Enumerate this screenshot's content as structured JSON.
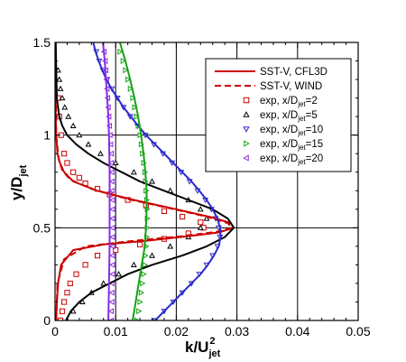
{
  "chart_data": {
    "type": "line",
    "xlabel": {
      "main": "k/U",
      "sub": "jet",
      "sup": "2"
    },
    "ylabel": {
      "main": "y/D",
      "sub": "jet"
    },
    "xlim": [
      0,
      0.05
    ],
    "ylim": [
      0,
      1.5
    ],
    "x_ticks": [
      "0",
      "0.01",
      "0.02",
      "0.03",
      "0.04",
      "0.05"
    ],
    "y_ticks": [
      "0",
      "0.5",
      "1",
      "1.5"
    ],
    "grid": true,
    "legend_position": "top-right",
    "legend": [
      {
        "text": "SST-V, CFL3D",
        "style": "solid-line",
        "color": "#cc0000"
      },
      {
        "text": "SST-V, WIND",
        "style": "dashed-line",
        "color": "#cc0000"
      },
      {
        "text": "exp, x/D",
        "sub": "jet",
        "suffix": "=2",
        "style": "marker",
        "marker": "square",
        "color": "#cc0000"
      },
      {
        "text": "exp, x/D",
        "sub": "jet",
        "suffix": "=5",
        "style": "marker",
        "marker": "triangle-up",
        "color": "#000000"
      },
      {
        "text": "exp, x/D",
        "sub": "jet",
        "suffix": "=10",
        "style": "marker",
        "marker": "triangle-down",
        "color": "#2a2acc"
      },
      {
        "text": "exp, x/D",
        "sub": "jet",
        "suffix": "=15",
        "style": "marker",
        "marker": "triangle-right",
        "color": "#16a316"
      },
      {
        "text": "exp, x/D",
        "sub": "jet",
        "suffix": "=20",
        "style": "marker",
        "marker": "triangle-left",
        "color": "#8a2be2"
      }
    ],
    "series": [
      {
        "name": "SST-V, CFL3D, x/Djet=2",
        "kind": "line",
        "color": "#cc0000",
        "points": [
          [
            0.0002,
            0
          ],
          [
            0.0003,
            0.1
          ],
          [
            0.0005,
            0.2
          ],
          [
            0.001,
            0.3
          ],
          [
            0.003,
            0.38
          ],
          [
            0.008,
            0.41
          ],
          [
            0.015,
            0.43
          ],
          [
            0.022,
            0.455
          ],
          [
            0.027,
            0.475
          ],
          [
            0.0295,
            0.5
          ],
          [
            0.029,
            0.525
          ],
          [
            0.026,
            0.555
          ],
          [
            0.02,
            0.6
          ],
          [
            0.013,
            0.65
          ],
          [
            0.007,
            0.7
          ],
          [
            0.003,
            0.75
          ],
          [
            0.0015,
            0.8
          ],
          [
            0.0008,
            0.85
          ],
          [
            0.0004,
            0.9
          ],
          [
            0.0002,
            1.0
          ],
          [
            0.0001,
            1.1
          ],
          [
            0.0001,
            1.5
          ]
        ]
      },
      {
        "name": "SST-V, WIND, x/Djet=2",
        "kind": "line",
        "dashed": true,
        "color": "#cc0000",
        "points": [
          [
            0.0002,
            0
          ],
          [
            0.0004,
            0.2
          ],
          [
            0.0015,
            0.33
          ],
          [
            0.005,
            0.4
          ],
          [
            0.013,
            0.43
          ],
          [
            0.021,
            0.455
          ],
          [
            0.027,
            0.48
          ],
          [
            0.0292,
            0.5
          ],
          [
            0.0285,
            0.525
          ],
          [
            0.025,
            0.56
          ],
          [
            0.019,
            0.605
          ],
          [
            0.012,
            0.655
          ],
          [
            0.006,
            0.71
          ],
          [
            0.0025,
            0.76
          ],
          [
            0.0012,
            0.81
          ],
          [
            0.0006,
            0.87
          ],
          [
            0.0002,
            1.0
          ],
          [
            0.0001,
            1.5
          ]
        ]
      },
      {
        "name": "SST-V, CFL3D, x/Djet=5",
        "kind": "line",
        "color": "#000000",
        "points": [
          [
            0.0018,
            0
          ],
          [
            0.0026,
            0.05
          ],
          [
            0.004,
            0.1
          ],
          [
            0.006,
            0.15
          ],
          [
            0.009,
            0.2
          ],
          [
            0.012,
            0.25
          ],
          [
            0.016,
            0.3
          ],
          [
            0.021,
            0.35
          ],
          [
            0.025,
            0.4
          ],
          [
            0.028,
            0.45
          ],
          [
            0.0295,
            0.5
          ],
          [
            0.0285,
            0.55
          ],
          [
            0.026,
            0.6
          ],
          [
            0.022,
            0.65
          ],
          [
            0.018,
            0.7
          ],
          [
            0.014,
            0.75
          ],
          [
            0.011,
            0.8
          ],
          [
            0.008,
            0.85
          ],
          [
            0.0055,
            0.9
          ],
          [
            0.0035,
            0.95
          ],
          [
            0.002,
            1.0
          ],
          [
            0.0012,
            1.05
          ],
          [
            0.0007,
            1.1
          ],
          [
            0.0003,
            1.2
          ],
          [
            0.0001,
            1.5
          ]
        ]
      },
      {
        "name": "SST-V, CFL3D, x/Djet=10",
        "kind": "line",
        "color": "#2a2acc",
        "points": [
          [
            0.0165,
            0
          ],
          [
            0.018,
            0.05
          ],
          [
            0.0195,
            0.1
          ],
          [
            0.021,
            0.15
          ],
          [
            0.0225,
            0.2
          ],
          [
            0.024,
            0.25
          ],
          [
            0.0252,
            0.3
          ],
          [
            0.0262,
            0.35
          ],
          [
            0.027,
            0.4
          ],
          [
            0.0273,
            0.45
          ],
          [
            0.0272,
            0.5
          ],
          [
            0.0268,
            0.55
          ],
          [
            0.026,
            0.6
          ],
          [
            0.025,
            0.65
          ],
          [
            0.0238,
            0.7
          ],
          [
            0.0225,
            0.75
          ],
          [
            0.021,
            0.8
          ],
          [
            0.0195,
            0.85
          ],
          [
            0.018,
            0.9
          ],
          [
            0.0165,
            0.95
          ],
          [
            0.015,
            1.0
          ],
          [
            0.0137,
            1.05
          ],
          [
            0.0125,
            1.1
          ],
          [
            0.0113,
            1.15
          ],
          [
            0.0103,
            1.2
          ],
          [
            0.0093,
            1.25
          ],
          [
            0.0085,
            1.3
          ],
          [
            0.0078,
            1.35
          ],
          [
            0.0072,
            1.4
          ],
          [
            0.0067,
            1.45
          ],
          [
            0.0063,
            1.5
          ]
        ]
      },
      {
        "name": "SST-V, CFL3D, x/Djet=15",
        "kind": "line",
        "color": "#16a316",
        "points": [
          [
            0.0128,
            0
          ],
          [
            0.0133,
            0.1
          ],
          [
            0.0138,
            0.2
          ],
          [
            0.0143,
            0.3
          ],
          [
            0.0148,
            0.4
          ],
          [
            0.015,
            0.5
          ],
          [
            0.0151,
            0.6
          ],
          [
            0.0151,
            0.7
          ],
          [
            0.0149,
            0.8
          ],
          [
            0.0146,
            0.9
          ],
          [
            0.0142,
            1.0
          ],
          [
            0.0137,
            1.1
          ],
          [
            0.0131,
            1.2
          ],
          [
            0.0124,
            1.3
          ],
          [
            0.0116,
            1.4
          ],
          [
            0.0107,
            1.5
          ]
        ]
      },
      {
        "name": "SST-V, CFL3D, x/Djet=20",
        "kind": "line",
        "color": "#8a2be2",
        "points": [
          [
            0.0088,
            0
          ],
          [
            0.0089,
            0.2
          ],
          [
            0.009,
            0.4
          ],
          [
            0.009,
            0.6
          ],
          [
            0.009,
            0.8
          ],
          [
            0.0089,
            1.0
          ],
          [
            0.0088,
            1.1
          ],
          [
            0.0086,
            1.2
          ],
          [
            0.0084,
            1.3
          ],
          [
            0.0082,
            1.4
          ],
          [
            0.0079,
            1.5
          ]
        ]
      },
      {
        "name": "exp, x/Djet=2",
        "kind": "marker",
        "marker": "square",
        "color": "#cc0000",
        "points": [
          [
            0.0009,
            0.0
          ],
          [
            0.0012,
            0.05
          ],
          [
            0.0015,
            0.1
          ],
          [
            0.002,
            0.15
          ],
          [
            0.0025,
            0.2
          ],
          [
            0.0035,
            0.25
          ],
          [
            0.005,
            0.3
          ],
          [
            0.007,
            0.35
          ],
          [
            0.01,
            0.38
          ],
          [
            0.014,
            0.41
          ],
          [
            0.018,
            0.44
          ],
          [
            0.022,
            0.47
          ],
          [
            0.0245,
            0.5
          ],
          [
            0.024,
            0.53
          ],
          [
            0.021,
            0.56
          ],
          [
            0.018,
            0.59
          ],
          [
            0.015,
            0.62
          ],
          [
            0.012,
            0.65
          ],
          [
            0.009,
            0.68
          ],
          [
            0.007,
            0.71
          ],
          [
            0.005,
            0.74
          ],
          [
            0.004,
            0.77
          ],
          [
            0.003,
            0.8
          ],
          [
            0.002,
            0.85
          ],
          [
            0.0015,
            0.9
          ],
          [
            0.001,
            1.0
          ],
          [
            0.0007,
            1.1
          ],
          [
            0.0005,
            1.2
          ]
        ]
      },
      {
        "name": "exp, x/Djet=5",
        "kind": "marker",
        "marker": "triangle-up",
        "color": "#000000",
        "points": [
          [
            0.002,
            0.0
          ],
          [
            0.003,
            0.05
          ],
          [
            0.0045,
            0.1
          ],
          [
            0.006,
            0.15
          ],
          [
            0.008,
            0.2
          ],
          [
            0.0105,
            0.25
          ],
          [
            0.013,
            0.3
          ],
          [
            0.016,
            0.35
          ],
          [
            0.019,
            0.4
          ],
          [
            0.022,
            0.45
          ],
          [
            0.024,
            0.5
          ],
          [
            0.025,
            0.55
          ],
          [
            0.024,
            0.6
          ],
          [
            0.022,
            0.65
          ],
          [
            0.019,
            0.7
          ],
          [
            0.016,
            0.75
          ],
          [
            0.013,
            0.8
          ],
          [
            0.01,
            0.85
          ],
          [
            0.0075,
            0.9
          ],
          [
            0.0055,
            0.95
          ],
          [
            0.004,
            1.0
          ],
          [
            0.003,
            1.05
          ],
          [
            0.0022,
            1.1
          ],
          [
            0.0016,
            1.15
          ],
          [
            0.0012,
            1.2
          ],
          [
            0.0009,
            1.25
          ],
          [
            0.0007,
            1.3
          ],
          [
            0.0005,
            1.35
          ]
        ]
      },
      {
        "name": "exp, x/Djet=10",
        "kind": "marker",
        "marker": "triangle-down",
        "color": "#2a2acc",
        "points": [
          [
            0.0165,
            0.0
          ],
          [
            0.018,
            0.05
          ],
          [
            0.0195,
            0.1
          ],
          [
            0.021,
            0.15
          ],
          [
            0.0225,
            0.2
          ],
          [
            0.0238,
            0.25
          ],
          [
            0.025,
            0.3
          ],
          [
            0.026,
            0.35
          ],
          [
            0.0268,
            0.4
          ],
          [
            0.0272,
            0.45
          ],
          [
            0.027,
            0.5
          ],
          [
            0.0265,
            0.55
          ],
          [
            0.0258,
            0.6
          ],
          [
            0.0248,
            0.65
          ],
          [
            0.0235,
            0.7
          ],
          [
            0.0222,
            0.75
          ],
          [
            0.0208,
            0.8
          ],
          [
            0.0193,
            0.85
          ],
          [
            0.0178,
            0.9
          ],
          [
            0.0163,
            0.95
          ],
          [
            0.0149,
            1.0
          ],
          [
            0.0136,
            1.05
          ],
          [
            0.0124,
            1.1
          ],
          [
            0.0113,
            1.15
          ],
          [
            0.0103,
            1.2
          ],
          [
            0.0094,
            1.25
          ],
          [
            0.0086,
            1.3
          ],
          [
            0.0079,
            1.35
          ],
          [
            0.0073,
            1.4
          ],
          [
            0.0068,
            1.45
          ]
        ]
      },
      {
        "name": "exp, x/Djet=15",
        "kind": "marker",
        "marker": "triangle-right",
        "color": "#16a316",
        "points": [
          [
            0.0135,
            0.0
          ],
          [
            0.0138,
            0.05
          ],
          [
            0.014,
            0.1
          ],
          [
            0.0142,
            0.15
          ],
          [
            0.0144,
            0.2
          ],
          [
            0.0146,
            0.25
          ],
          [
            0.0148,
            0.3
          ],
          [
            0.0149,
            0.35
          ],
          [
            0.015,
            0.4
          ],
          [
            0.0151,
            0.45
          ],
          [
            0.0152,
            0.5
          ],
          [
            0.0152,
            0.55
          ],
          [
            0.0152,
            0.6
          ],
          [
            0.0151,
            0.65
          ],
          [
            0.015,
            0.7
          ],
          [
            0.0149,
            0.75
          ],
          [
            0.0148,
            0.8
          ],
          [
            0.0146,
            0.85
          ],
          [
            0.0144,
            0.9
          ],
          [
            0.0142,
            0.95
          ],
          [
            0.014,
            1.0
          ],
          [
            0.0137,
            1.05
          ],
          [
            0.0134,
            1.1
          ],
          [
            0.0131,
            1.15
          ],
          [
            0.0128,
            1.2
          ],
          [
            0.0124,
            1.25
          ],
          [
            0.012,
            1.3
          ],
          [
            0.0116,
            1.35
          ],
          [
            0.0112,
            1.4
          ],
          [
            0.0107,
            1.45
          ]
        ]
      },
      {
        "name": "exp, x/Djet=20",
        "kind": "marker",
        "marker": "triangle-left",
        "color": "#8a2be2",
        "points": [
          [
            0.0093,
            0.0
          ],
          [
            0.0093,
            0.05
          ],
          [
            0.0094,
            0.1
          ],
          [
            0.0094,
            0.15
          ],
          [
            0.0094,
            0.2
          ],
          [
            0.0095,
            0.25
          ],
          [
            0.0095,
            0.3
          ],
          [
            0.0095,
            0.35
          ],
          [
            0.0095,
            0.4
          ],
          [
            0.0095,
            0.45
          ],
          [
            0.0095,
            0.5
          ],
          [
            0.0095,
            0.55
          ],
          [
            0.0095,
            0.6
          ],
          [
            0.0095,
            0.65
          ],
          [
            0.0094,
            0.7
          ],
          [
            0.0094,
            0.75
          ],
          [
            0.0094,
            0.8
          ],
          [
            0.0093,
            0.85
          ],
          [
            0.0093,
            0.9
          ],
          [
            0.0092,
            0.95
          ],
          [
            0.0091,
            1.0
          ],
          [
            0.009,
            1.05
          ],
          [
            0.0089,
            1.1
          ],
          [
            0.0088,
            1.15
          ],
          [
            0.0087,
            1.2
          ],
          [
            0.0086,
            1.25
          ],
          [
            0.0085,
            1.3
          ],
          [
            0.0084,
            1.35
          ],
          [
            0.0083,
            1.4
          ],
          [
            0.0081,
            1.45
          ]
        ]
      }
    ]
  }
}
